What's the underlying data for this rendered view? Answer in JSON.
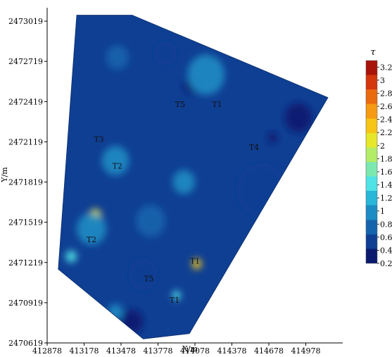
{
  "chart_data": {
    "type": "heatmap",
    "title": "",
    "xlabel": "X/m",
    "ylabel": "Y/m",
    "x_ticks": [
      412878,
      413178,
      413478,
      413778,
      414078,
      414378,
      414678,
      414978
    ],
    "y_ticks": [
      2470619,
      2470919,
      2471219,
      2471519,
      2471819,
      2472119,
      2472419,
      2472719,
      2473019
    ],
    "xlim": [
      412878,
      415278
    ],
    "ylim": [
      2470619,
      2473119
    ],
    "colorbar": {
      "title": "τ",
      "range": [
        0.2,
        3.3
      ],
      "ticks": [
        3.2,
        3,
        2.8,
        2.6,
        2.4,
        2.2,
        2,
        1.8,
        1.6,
        1.4,
        1.2,
        1,
        0.8,
        0.6,
        0.4,
        0.2
      ],
      "colors": [
        "#0b1a6e",
        "#0f3f93",
        "#1464ad",
        "#1c8cc4",
        "#28b6d9",
        "#4fe3e6",
        "#7be8b0",
        "#b3ec66",
        "#e6e72a",
        "#f6c516",
        "#f59a12",
        "#ea6a10",
        "#d4360c",
        "#a9140a"
      ]
    },
    "domain_outline": [
      [
        413118,
        2473064
      ],
      [
        413568,
        2473064
      ],
      [
        415158,
        2472449
      ],
      [
        414033,
        2470689
      ],
      [
        413658,
        2470649
      ],
      [
        412968,
        2471169
      ]
    ],
    "zone_labels": [
      {
        "text": "T5",
        "x": 413958,
        "y": 2472379
      },
      {
        "text": "T1",
        "x": 414258,
        "y": 2472379
      },
      {
        "text": "T3",
        "x": 413298,
        "y": 2472119
      },
      {
        "text": "T2",
        "x": 413448,
        "y": 2471919
      },
      {
        "text": "T4",
        "x": 414558,
        "y": 2472059
      },
      {
        "text": "T2",
        "x": 413238,
        "y": 2471369
      },
      {
        "text": "T5",
        "x": 413703,
        "y": 2471079
      },
      {
        "text": "T1",
        "x": 414078,
        "y": 2471209
      },
      {
        "text": "T1",
        "x": 413913,
        "y": 2470919
      }
    ],
    "features": [
      {
        "kind": "low",
        "x": 414708,
        "y": 2472149,
        "value": 0.2,
        "r": 40
      },
      {
        "kind": "low",
        "x": 414048,
        "y": 2472539,
        "value": 0.3,
        "r": 60
      },
      {
        "kind": "low",
        "x": 414918,
        "y": 2472299,
        "value": 0.35,
        "r": 110
      },
      {
        "kind": "low",
        "x": 414618,
        "y": 2471759,
        "value": 0.45,
        "r": 200
      },
      {
        "kind": "low",
        "x": 413658,
        "y": 2471129,
        "value": 0.45,
        "r": 120
      },
      {
        "kind": "low",
        "x": 413568,
        "y": 2470779,
        "value": 0.4,
        "r": 90
      },
      {
        "kind": "low",
        "x": 413838,
        "y": 2472779,
        "value": 0.45,
        "r": 90
      },
      {
        "kind": "high",
        "x": 414093,
        "y": 2471209,
        "value": 2.3,
        "r": 40
      },
      {
        "kind": "high",
        "x": 413268,
        "y": 2471569,
        "value": 2.0,
        "r": 50
      },
      {
        "kind": "high",
        "x": 413073,
        "y": 2471264,
        "value": 1.4,
        "r": 45
      },
      {
        "kind": "high",
        "x": 413928,
        "y": 2470974,
        "value": 1.5,
        "r": 35
      },
      {
        "kind": "high",
        "x": 413433,
        "y": 2471979,
        "value": 1.0,
        "r": 110
      },
      {
        "kind": "high",
        "x": 414168,
        "y": 2472619,
        "value": 0.95,
        "r": 150
      },
      {
        "kind": "high",
        "x": 413238,
        "y": 2471469,
        "value": 0.95,
        "r": 120
      },
      {
        "kind": "high",
        "x": 413988,
        "y": 2471819,
        "value": 0.95,
        "r": 90
      },
      {
        "kind": "high",
        "x": 413433,
        "y": 2470849,
        "value": 0.95,
        "r": 60
      },
      {
        "kind": "high",
        "x": 413718,
        "y": 2471529,
        "value": 0.85,
        "r": 120
      },
      {
        "kind": "high",
        "x": 413448,
        "y": 2472749,
        "value": 0.85,
        "r": 90
      }
    ]
  }
}
